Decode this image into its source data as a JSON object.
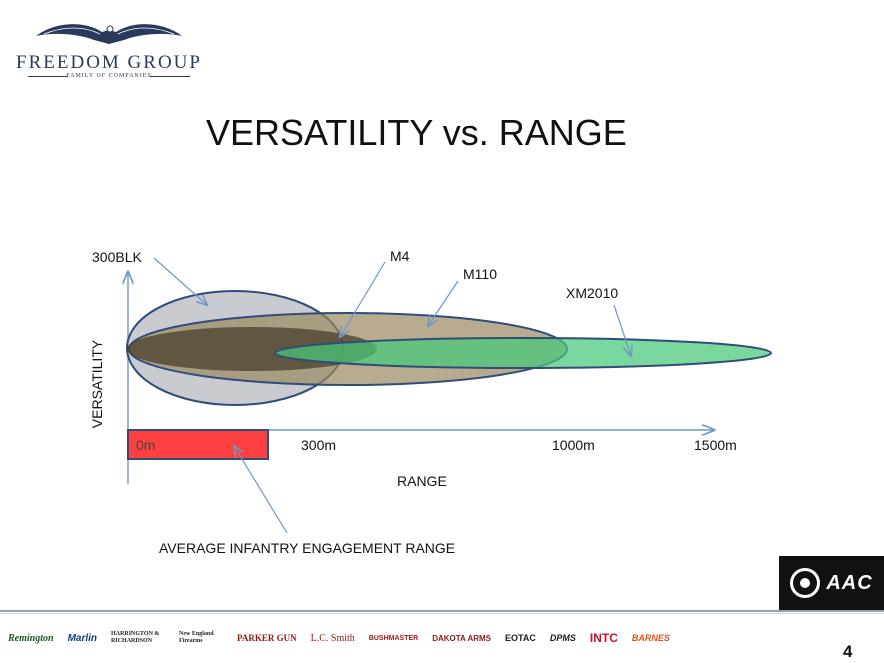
{
  "logo": {
    "name": "FREEDOM GROUP",
    "tagline": "FAMILY OF COMPANIES"
  },
  "slide": {
    "title": "VERSATILITY vs. RANGE",
    "page_number": "4"
  },
  "diagram": {
    "y_axis_label": "VERSATILITY",
    "x_axis_label": "RANGE",
    "range_ticks": [
      {
        "label": "0m"
      },
      {
        "label": "300m"
      },
      {
        "label": "1000m"
      },
      {
        "label": "1500m"
      }
    ],
    "callouts": [
      {
        "id": "300blk",
        "label": "300BLK",
        "color": "#b8bac1"
      },
      {
        "id": "m4",
        "label": "M4",
        "color": "#4a3f2e"
      },
      {
        "id": "m110",
        "label": "M110",
        "color": "#9a8860"
      },
      {
        "id": "xm2010",
        "label": "XM2010",
        "color": "#5fd08a"
      }
    ],
    "engagement_zone": {
      "label": "AVERAGE INFANTRY ENGAGEMENT RANGE",
      "color": "#ff4040"
    }
  },
  "footer": {
    "brands": [
      "Remington",
      "Marlin",
      "HARRINGTON & RICHARDSON",
      "New England Firearms",
      "PARKER GUN",
      "L.C. Smith",
      "BUSHMASTER",
      "DAKOTA ARMS",
      "EOTAC",
      "DPMS",
      "INTC",
      "BARNES"
    ],
    "brand_colors": [
      "#1a5a2a",
      "#123a7a",
      "#222222",
      "#222222",
      "#8a1a1a",
      "#8a1a1a",
      "#b0141e",
      "#8a1a1a",
      "#b0141e",
      "#222222",
      "#c8102e",
      "#e0541a"
    ],
    "partner_badge": "AAC"
  }
}
